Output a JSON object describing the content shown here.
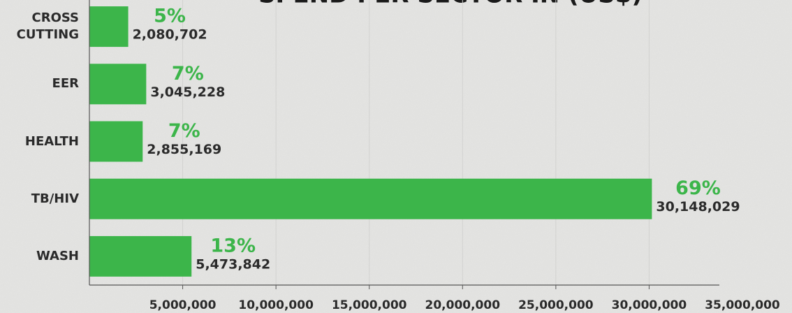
{
  "chart_data": {
    "type": "bar",
    "orientation": "horizontal",
    "title": "SPEND PER SECTOR IN (US$)",
    "categories": [
      "CROSS CUTTING",
      "EER",
      "HEALTH",
      "TB/HIV",
      "WASH"
    ],
    "values": [
      2080702,
      3045228,
      2855169,
      30148029,
      5473842
    ],
    "value_labels": [
      "2,080,702",
      "3,045,228",
      "2,855,169",
      "30,148,029",
      "5,473,842"
    ],
    "percent_labels": [
      "5%",
      "7%",
      "7%",
      "69%",
      "13%"
    ],
    "color": "#3cb54a",
    "percent_color": "#3cb54a",
    "xlim": [
      0,
      35000000
    ],
    "xticks": [
      {
        "value": 5000000,
        "label": "5,000,000"
      },
      {
        "value": 10000000,
        "label": "10,000,000"
      },
      {
        "value": 15000000,
        "label": "15,000,000"
      },
      {
        "value": 20000000,
        "label": "20,000,000"
      },
      {
        "value": 25000000,
        "label": "25,000,000"
      },
      {
        "value": 30000000,
        "label": "30,000,000"
      },
      {
        "value": 35000000,
        "label": "35,000,000"
      }
    ],
    "grid": true
  }
}
